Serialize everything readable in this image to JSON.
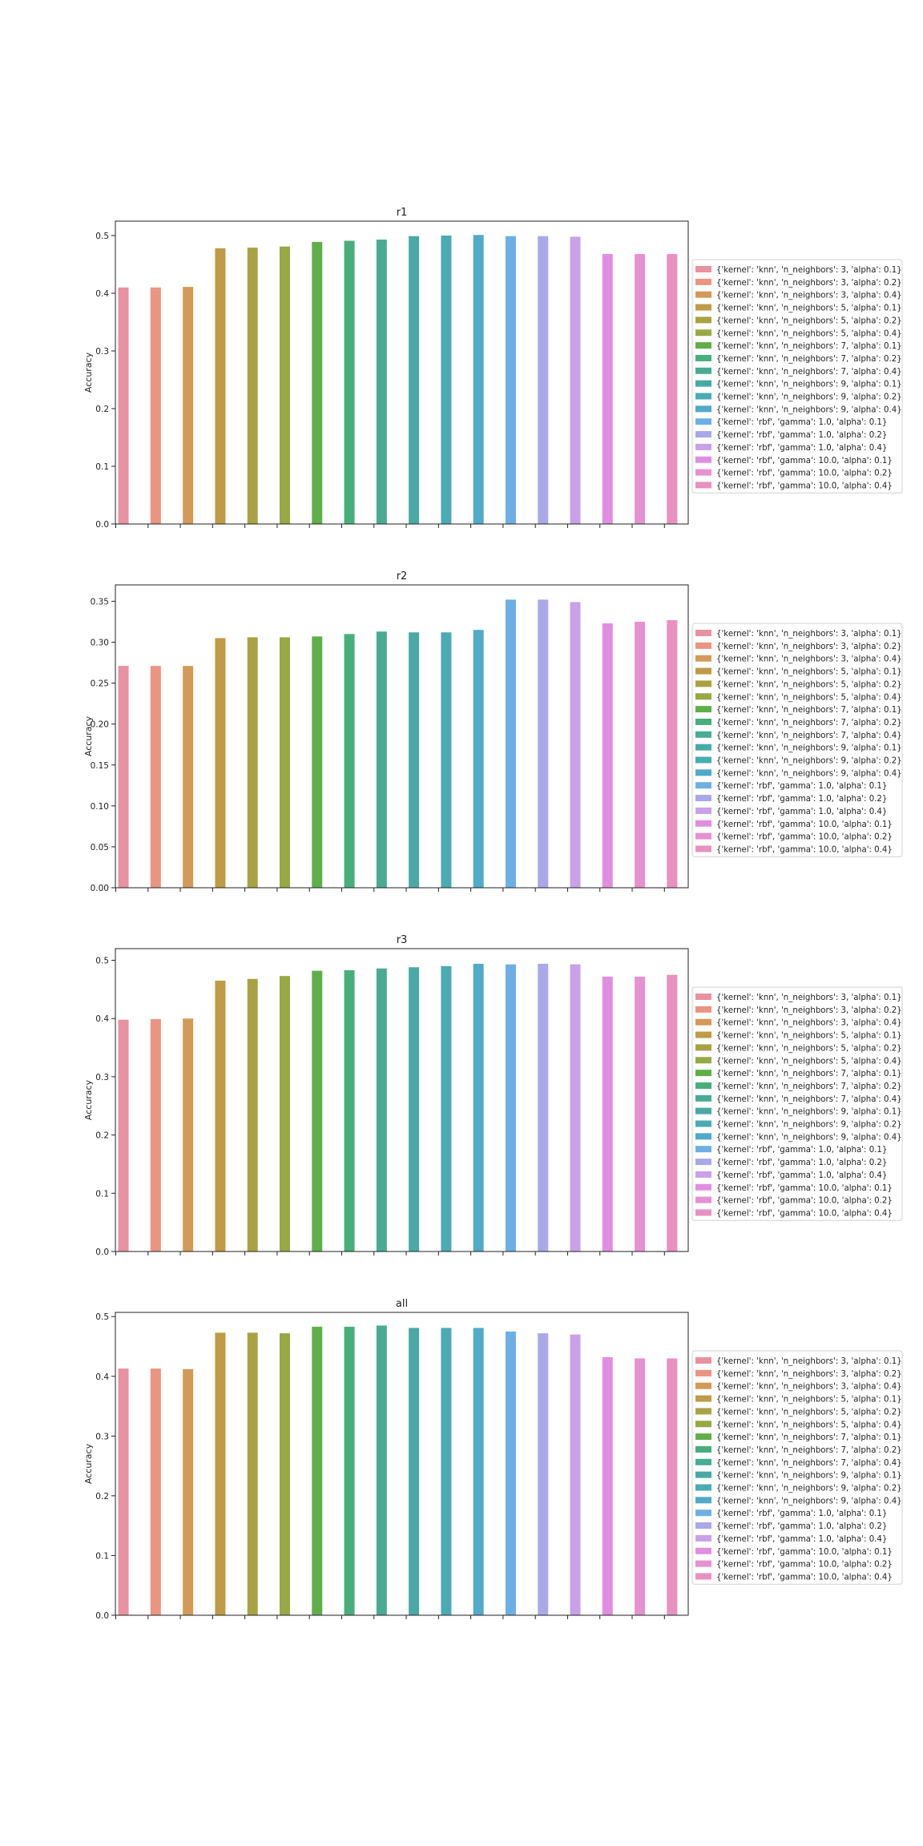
{
  "legend_labels": [
    "{'kernel': 'knn', 'n_neighbors': 3, 'alpha': 0.1}",
    "{'kernel': 'knn', 'n_neighbors': 3, 'alpha': 0.2}",
    "{'kernel': 'knn', 'n_neighbors': 3, 'alpha': 0.4}",
    "{'kernel': 'knn', 'n_neighbors': 5, 'alpha': 0.1}",
    "{'kernel': 'knn', 'n_neighbors': 5, 'alpha': 0.2}",
    "{'kernel': 'knn', 'n_neighbors': 5, 'alpha': 0.4}",
    "{'kernel': 'knn', 'n_neighbors': 7, 'alpha': 0.1}",
    "{'kernel': 'knn', 'n_neighbors': 7, 'alpha': 0.2}",
    "{'kernel': 'knn', 'n_neighbors': 7, 'alpha': 0.4}",
    "{'kernel': 'knn', 'n_neighbors': 9, 'alpha': 0.1}",
    "{'kernel': 'knn', 'n_neighbors': 9, 'alpha': 0.2}",
    "{'kernel': 'knn', 'n_neighbors': 9, 'alpha': 0.4}",
    "{'kernel': 'rbf', 'gamma': 1.0, 'alpha': 0.1}",
    "{'kernel': 'rbf', 'gamma': 1.0, 'alpha': 0.2}",
    "{'kernel': 'rbf', 'gamma': 1.0, 'alpha': 0.4}",
    "{'kernel': 'rbf', 'gamma': 10.0, 'alpha': 0.1}",
    "{'kernel': 'rbf', 'gamma': 10.0, 'alpha': 0.2}",
    "{'kernel': 'rbf', 'gamma': 10.0, 'alpha': 0.4}"
  ],
  "series_colors": [
    "#e8919f",
    "#e99581",
    "#d39a57",
    "#bd9b48",
    "#a8a244",
    "#97a845",
    "#60ae49",
    "#4aae7b",
    "#4aab93",
    "#4aa9a4",
    "#4caab3",
    "#52a9c9",
    "#6eafe3",
    "#aaa8e8",
    "#c8a1e7",
    "#e18ee0",
    "#e591d2",
    "#e891be"
  ],
  "chart_data": [
    {
      "type": "bar",
      "title": "r1",
      "ylabel": "Accuracy",
      "ylim": [
        0,
        0.525
      ],
      "yticks": [
        "0.0",
        "0.1",
        "0.2",
        "0.3",
        "0.4",
        "0.5"
      ],
      "values": [
        0.41,
        0.41,
        0.411,
        0.478,
        0.479,
        0.481,
        0.489,
        0.491,
        0.493,
        0.499,
        0.5,
        0.501,
        0.499,
        0.499,
        0.498,
        0.468,
        0.468,
        0.468
      ]
    },
    {
      "type": "bar",
      "title": "r2",
      "ylabel": "Accuracy",
      "ylim": [
        0,
        0.37
      ],
      "yticks": [
        "0.00",
        "0.05",
        "0.10",
        "0.15",
        "0.20",
        "0.25",
        "0.30",
        "0.35"
      ],
      "values": [
        0.271,
        0.271,
        0.271,
        0.305,
        0.306,
        0.306,
        0.307,
        0.31,
        0.313,
        0.312,
        0.312,
        0.315,
        0.352,
        0.352,
        0.349,
        0.323,
        0.325,
        0.327
      ]
    },
    {
      "type": "bar",
      "title": "r3",
      "ylabel": "Accuracy",
      "ylim": [
        0,
        0.52
      ],
      "yticks": [
        "0.0",
        "0.1",
        "0.2",
        "0.3",
        "0.4",
        "0.5"
      ],
      "values": [
        0.398,
        0.399,
        0.4,
        0.465,
        0.468,
        0.473,
        0.482,
        0.483,
        0.486,
        0.488,
        0.49,
        0.494,
        0.493,
        0.494,
        0.493,
        0.472,
        0.472,
        0.475
      ]
    },
    {
      "type": "bar",
      "title": "all",
      "ylabel": "Accuracy",
      "ylim": [
        0,
        0.507
      ],
      "yticks": [
        "0.0",
        "0.1",
        "0.2",
        "0.3",
        "0.4",
        "0.5"
      ],
      "values": [
        0.413,
        0.413,
        0.412,
        0.473,
        0.473,
        0.472,
        0.483,
        0.483,
        0.485,
        0.481,
        0.481,
        0.481,
        0.475,
        0.472,
        0.47,
        0.432,
        0.43,
        0.43
      ]
    }
  ]
}
